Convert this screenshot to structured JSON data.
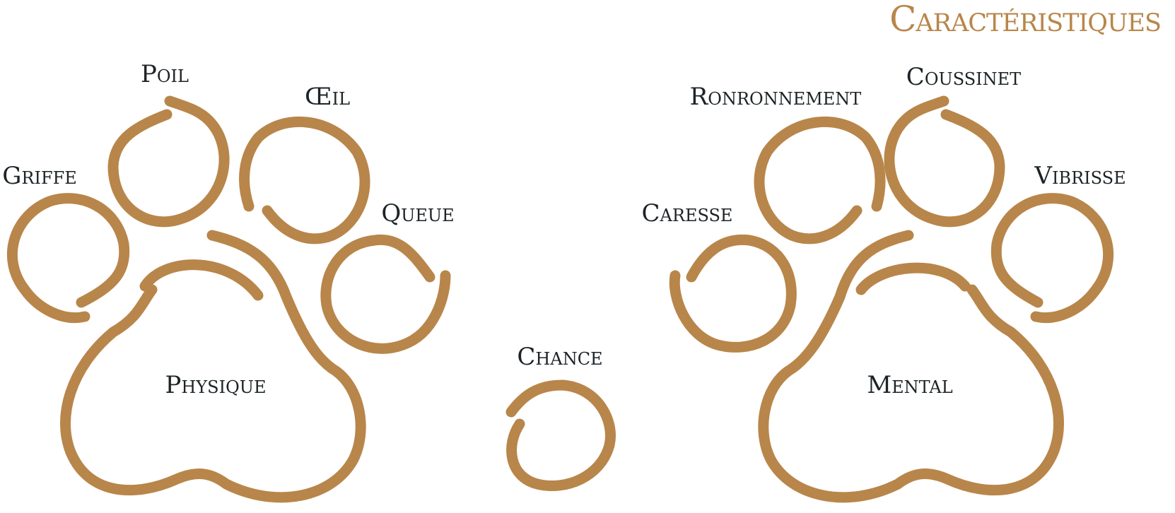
{
  "title": "Caractéristiques",
  "accent_color": "#b8864a",
  "text_color": "#1d2326",
  "left_paw": {
    "pad_label": "Physique",
    "toes": [
      "Griffe",
      "Poil",
      "Œil",
      "Queue"
    ]
  },
  "center": {
    "label": "Chance"
  },
  "right_paw": {
    "pad_label": "Mental",
    "toes": [
      "Caresse",
      "Ronronnement",
      "Coussinet",
      "Vibrisse"
    ]
  }
}
